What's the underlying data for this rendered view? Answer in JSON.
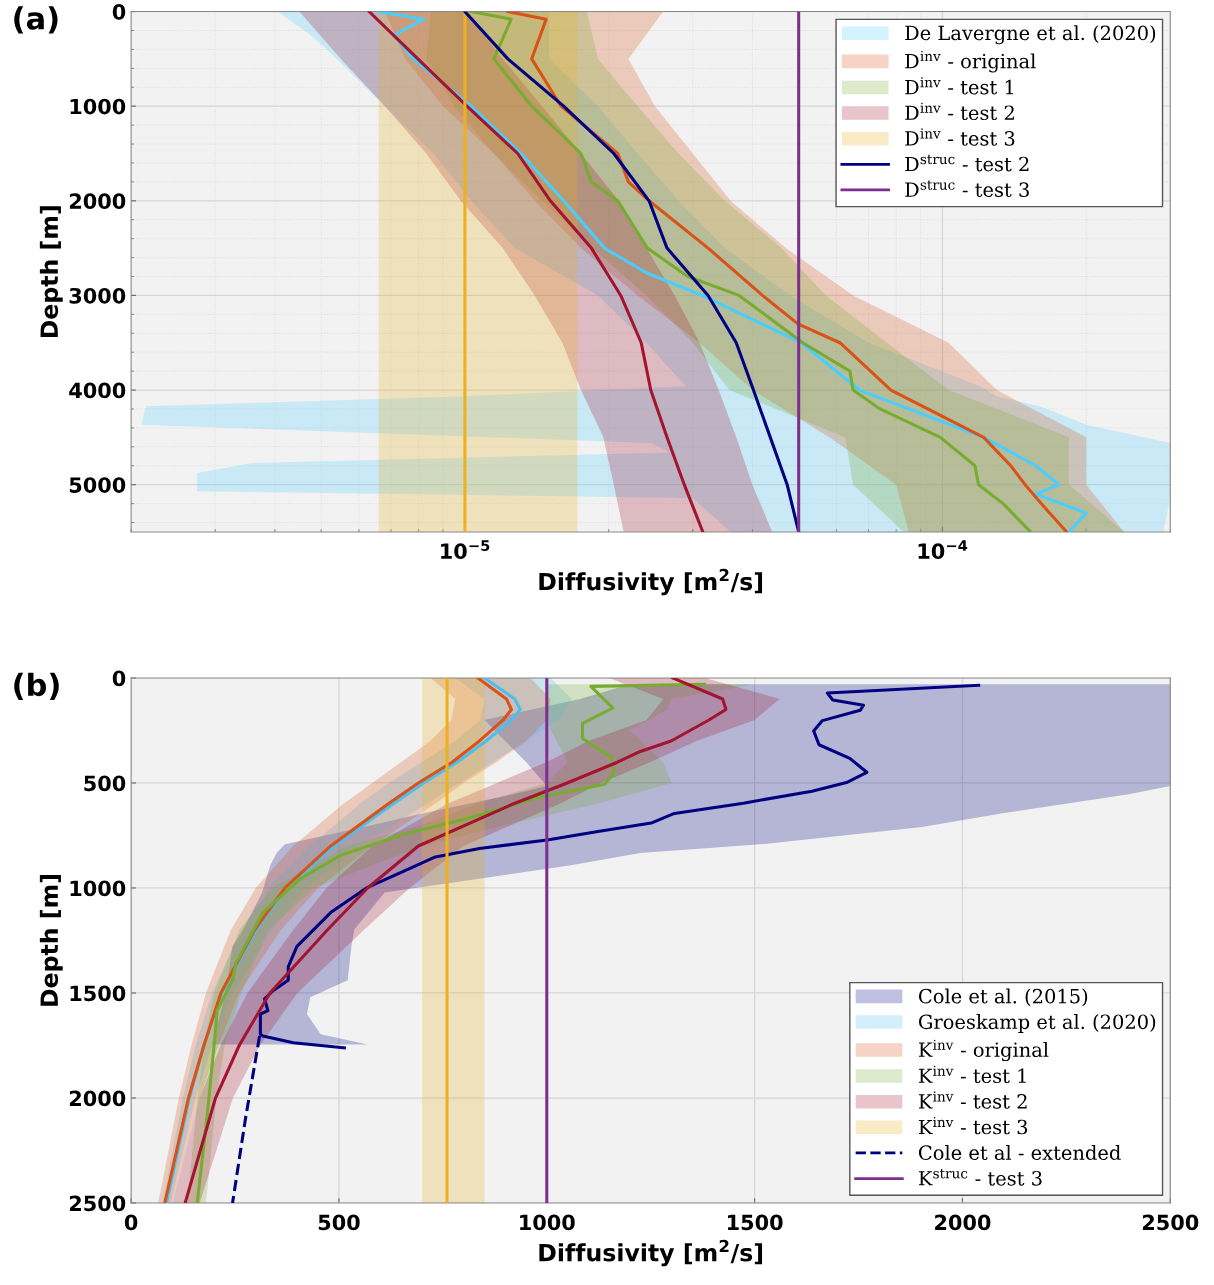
{
  "chart_data": [
    {
      "type": "line",
      "orientation": "horizontal",
      "title": "(a)",
      "xlabel": "Diffusivity [m$^{2}$/s]",
      "ylabel": "Depth [m]",
      "log": "x",
      "grid": true,
      "legend": "top right",
      "xlim": [
        2e-06,
        0.0003
      ],
      "xticks": [
        {
          "value": 1e-05,
          "label": "10$^{−5}$"
        },
        {
          "value": 0.0001,
          "label": "10$^{−4}$"
        }
      ],
      "ylim": [
        5500,
        0
      ],
      "yticks": [
        0,
        1000,
        2000,
        3000,
        4000,
        5000
      ],
      "series": [
        {
          "name": "De Lavergne et al. (2020)",
          "color": "#4aceff",
          "x": [
            0,
            80,
            250,
            500,
            1000,
            1500,
            2000,
            2500,
            2760,
            3000,
            3500,
            3960,
            4000,
            4066,
            4172,
            4366,
            4500,
            4559,
            4660,
            4771,
            4800,
            4876,
            5000,
            5070,
            5100,
            5140,
            5300,
            5500
          ],
          "values": [
            6.6e-06,
            8.2e-06,
            7.1e-06,
            7.8e-06,
            1.03e-05,
            1.31e-05,
            1.61e-05,
            1.96e-05,
            2.4e-05,
            3.14e-05,
            5.06e-05,
            null,
            6.7e-05,
            null,
            null,
            null,
            0.000122,
            null,
            null,
            null,
            0.000157,
            null,
            0.000175,
            null,
            0.000157,
            null,
            0.0002,
            0.000184
          ],
          "lower": [
            4.05e-06,
            null,
            4.76e-06,
            5.4e-06,
            6.8e-06,
            8.6e-06,
            1.03e-05,
            1.27e-05,
            null,
            1.9e-05,
            2.4e-05,
            2.9e-05,
            null,
            1e-05,
            2.15e-06,
            2.1e-06,
            null,
            2.45e-05,
            2.7e-05,
            3.6e-06,
            null,
            2.75e-06,
            null,
            2.75e-06,
            null,
            3e-05,
            null,
            3.6e-05
          ],
          "upper": [
            1.5e-05,
            null,
            1.5e-05,
            1.5e-05,
            1.9e-05,
            2.3e-05,
            2.8e-05,
            3.5e-05,
            null,
            4.8e-05,
            7e-05,
            0.00012,
            null,
            0.00013,
            0.00016,
            0.0002,
            null,
            0.0003,
            0.0003,
            0.0003,
            null,
            0.0003,
            null,
            0.0003,
            null,
            0.0003,
            null,
            0.00029
          ]
        },
        {
          "name": "D$^{inv}$ - original",
          "color": "#d95319",
          "x": [
            0,
            80,
            500,
            1000,
            1500,
            1800,
            2000,
            2500,
            3000,
            3300,
            3500,
            4000,
            4500,
            4800,
            5000,
            5200,
            5500
          ],
          "values": [
            1.23e-05,
            1.48e-05,
            1.38e-05,
            1.59e-05,
            2.09e-05,
            2.2e-05,
            2.43e-05,
            3.23e-05,
            4.2e-05,
            4.98e-05,
            6.1e-05,
            7.8e-05,
            0.000122,
            0.000139,
            0.000149,
            0.000161,
            0.000182
          ],
          "lower": [
            6.8e-06,
            null,
            7.5e-06,
            9e-06,
            1.15e-05,
            null,
            1.4e-05,
            1.75e-05,
            2.3e-05,
            null,
            3.1e-05,
            4e-05,
            5.8e-05,
            null,
            8e-05,
            null,
            8.5e-05
          ],
          "upper": [
            2.6e-05,
            null,
            2.2e-05,
            2.5e-05,
            3e-05,
            null,
            3.6e-05,
            4.7e-05,
            6.5e-05,
            null,
            0.000103,
            0.00013,
            0.0002,
            null,
            0.0002,
            null,
            0.00024
          ]
        },
        {
          "name": "D$^{inv}$ - test 1",
          "color": "#77ac30",
          "x": [
            0,
            80,
            500,
            1000,
            1500,
            1800,
            2000,
            2500,
            2800,
            3000,
            3500,
            3800,
            4000,
            4200,
            4500,
            4800,
            5000,
            5200,
            5500
          ],
          "values": [
            1.03e-05,
            1.25e-05,
            1.15e-05,
            1.38e-05,
            1.75e-05,
            1.84e-05,
            2.09e-05,
            2.41e-05,
            2.93e-05,
            3.75e-05,
            5.1e-05,
            6.4e-05,
            6.5e-05,
            7.4e-05,
            9.9e-05,
            0.000117,
            0.000119,
            0.000134,
            0.000153
          ],
          "lower": [
            8.5e-06,
            null,
            8.3e-06,
            9.5e-06,
            1.15e-05,
            null,
            1.45e-05,
            1.85e-05,
            null,
            2.4e-05,
            3e-05,
            null,
            3.58e-05,
            null,
            6.26e-05,
            null,
            6.5e-05,
            null,
            8.3e-05
          ],
          "upper": [
            1.8e-05,
            null,
            1.9e-05,
            2.3e-05,
            2.8e-05,
            null,
            3.5e-05,
            4.6e-05,
            null,
            5.7e-05,
            7.65e-05,
            null,
            0.000103,
            null,
            0.000184,
            null,
            0.000184,
            null,
            0.00024
          ]
        },
        {
          "name": "D$^{inv}$ - test 2",
          "color": "#a2142f",
          "x": [
            0,
            500,
            1000,
            1500,
            2000,
            2500,
            3000,
            3500,
            4000,
            4500,
            5000,
            5500
          ],
          "values": [
            6.3e-06,
            7.97e-06,
            1.01e-05,
            1.29e-05,
            1.51e-05,
            1.84e-05,
            2.12e-05,
            2.34e-05,
            2.45e-05,
            2.65e-05,
            2.88e-05,
            3.15e-05
          ],
          "lower": [
            4.5e-06,
            5.5e-06,
            6.8e-06,
            8.3e-06,
            9.8e-06,
            1.2e-05,
            1.4e-05,
            1.6e-05,
            1.75e-05,
            1.95e-05,
            2.05e-05,
            2.15e-05
          ],
          "upper": [
            1e-05,
            1.2e-05,
            1.45e-05,
            1.75e-05,
            2.1e-05,
            2.4e-05,
            2.75e-05,
            3.1e-05,
            3.4e-05,
            3.7e-05,
            4e-05,
            4.4e-05
          ]
        },
        {
          "name": "D$^{inv}$ - test 3",
          "color": "#edb120",
          "x": [
            0,
            5500
          ],
          "values": [
            1e-05,
            1e-05
          ],
          "lower": [
            6.6e-06,
            6.6e-06
          ],
          "upper": [
            1.72e-05,
            1.72e-05
          ]
        },
        {
          "name": "D$^{struc}$ - test 2",
          "color": "#000080",
          "x": [
            0,
            500,
            1000,
            1500,
            2000,
            2500,
            3000,
            3500,
            4000,
            4500,
            5000,
            5500
          ],
          "values": [
            1e-05,
            1.23e-05,
            1.61e-05,
            2.05e-05,
            2.43e-05,
            2.65e-05,
            3.23e-05,
            3.7e-05,
            4.02e-05,
            4.36e-05,
            4.73e-05,
            5e-05
          ]
        },
        {
          "name": "D$^{struc}$ - test 3",
          "color": "#7e2f8e",
          "x": [
            0,
            5500
          ],
          "values": [
            5e-05,
            5e-05
          ]
        }
      ]
    },
    {
      "type": "line",
      "orientation": "horizontal",
      "title": "(b)",
      "xlabel": "Diffusivity [m$^{2}$/s]",
      "ylabel": "Depth [m]",
      "grid": true,
      "legend": "bottom right",
      "xlim": [
        0,
        2500
      ],
      "xticks": [
        0,
        500,
        1000,
        1500,
        2000,
        2500
      ],
      "ylim": [
        2500,
        0
      ],
      "yticks": [
        0,
        500,
        1000,
        1500,
        2000,
        2500
      ],
      "series": [
        {
          "name": "Cole et al. (2015)",
          "color": "#000080",
          "x": [
            30,
            35,
            72,
            100,
            105,
            130,
            154,
            200,
            203,
            252,
            300,
            318,
            383,
            400,
            449,
            498,
            514,
            539,
            554,
            596,
            645,
            691,
            710,
            731,
            771,
            792,
            812,
            833,
            852,
            892,
            924,
            997,
            1021,
            1117,
            1198,
            1278,
            1375,
            1439,
            1488,
            1520,
            1528,
            1584,
            1600,
            1697,
            1705,
            1737,
            1745,
            1761
          ],
          "values": [
            null,
            2039,
            1675,
            null,
            1688,
            1762,
            1754,
            null,
            1663,
            1642,
            null,
            1655,
            1729,
            null,
            1770,
            1721,
            null,
            1638,
            null,
            1473,
            1307,
            1251,
            null,
            1123,
            1001,
            null,
            838,
            null,
            732,
            null,
            651,
            569,
            null,
            480,
            null,
            399,
            378,
            378,
            342,
            null,
            321,
            329,
            311,
            311,
            317,
            390,
            null,
            513
          ],
          "lower": [
            1200,
            null,
            null,
            1080,
            null,
            null,
            null,
            850,
            null,
            null,
            900,
            null,
            null,
            950,
            null,
            null,
            1000,
            null,
            919,
            null,
            700,
            null,
            560,
            null,
            null,
            370,
            null,
            350,
            null,
            335,
            null,
            null,
            315,
            null,
            270,
            244,
            null,
            232,
            null,
            224,
            null,
            null,
            215,
            200,
            null,
            null,
            195,
            null
          ],
          "upper": [
            2500,
            null,
            null,
            2500,
            null,
            null,
            null,
            2500,
            null,
            null,
            2500,
            null,
            null,
            2500,
            null,
            null,
            2500,
            null,
            2400,
            null,
            2093,
            null,
            1903,
            null,
            null,
            1514,
            null,
            1225,
            null,
            1058,
            null,
            null,
            610,
            null,
            537,
            530,
            null,
            521,
            null,
            431,
            null,
            null,
            423,
            456,
            null,
            null,
            569,
            null
          ]
        },
        {
          "name": "Groeskamp et al. (2020)",
          "color": "#4dbeee",
          "x": [
            0,
            100,
            150,
            200,
            300,
            400,
            500,
            600,
            800,
            1000,
            1200,
            1500,
            1750,
            2000,
            2500
          ],
          "values": [
            850,
            923,
            936,
            915,
            854,
            785,
            704,
            630,
            488,
            374,
            301,
            218,
            175,
            140,
            85
          ],
          "lower": [
            780,
            850,
            null,
            840,
            780,
            700,
            620,
            550,
            430,
            330,
            265,
            195,
            155,
            125,
            75
          ],
          "upper": [
            1010,
            1060,
            null,
            1030,
            950,
            870,
            790,
            710,
            550,
            420,
            340,
            245,
            195,
            155,
            95
          ]
        },
        {
          "name": "K$^{inv}$ - original",
          "color": "#d95319",
          "x": [
            0,
            100,
            150,
            200,
            300,
            400,
            500,
            600,
            800,
            1000,
            1200,
            1500,
            1750,
            2000,
            2500
          ],
          "values": [
            834,
            903,
            915,
            895,
            838,
            773,
            691,
            618,
            480,
            370,
            297,
            216,
            175,
            138,
            81
          ],
          "lower": [
            720,
            780,
            null,
            770,
            720,
            650,
            580,
            510,
            390,
            300,
            240,
            180,
            145,
            115,
            65
          ],
          "upper": [
            960,
            1010,
            null,
            1000,
            950,
            880,
            800,
            730,
            580,
            450,
            360,
            260,
            210,
            165,
            100
          ]
        },
        {
          "name": "K$^{inv}$ - test 1",
          "color": "#77ac30",
          "x": [
            30,
            40,
            100,
            143,
            150,
            216,
            250,
            288,
            377,
            400,
            449,
            500,
            506,
            570,
            600,
            667,
            700,
            747,
            800,
            844,
            956,
            1000,
            1117,
            1200,
            1359,
            1439,
            1500,
            1584,
            1750,
            1761,
            2000,
            2083,
            2500
          ],
          "values": [
            1380,
            1106,
            null,
            1159,
            null,
            1086,
            null,
            1086,
            1155,
            null,
            1163,
            null,
            1139,
            976,
            null,
            814,
            null,
            651,
            null,
            504,
            407,
            null,
            317,
            null,
            252,
            244,
            null,
            207,
            null,
            199,
            null,
            183,
            159
          ],
          "lower": [
            1000,
            null,
            1000,
            null,
            1000,
            null,
            1010,
            null,
            null,
            1050,
            null,
            1000,
            null,
            null,
            830,
            null,
            700,
            null,
            520,
            null,
            null,
            340,
            null,
            260,
            null,
            null,
            200,
            null,
            175,
            null,
            160,
            null,
            135
          ],
          "upper": [
            1500,
            null,
            1300,
            null,
            1290,
            null,
            1200,
            null,
            null,
            1280,
            null,
            1300,
            null,
            null,
            1120,
            null,
            900,
            null,
            700,
            null,
            null,
            440,
            null,
            330,
            null,
            null,
            265,
            null,
            225,
            null,
            205,
            null,
            180
          ]
        },
        {
          "name": "K$^{inv}$ - test 2",
          "color": "#a2142f",
          "x": [
            0,
            100,
            150,
            200,
            300,
            350,
            400,
            500,
            600,
            800,
            1000,
            1200,
            1500,
            1750,
            2000,
            2500
          ],
          "values": [
            1303,
            1423,
            1431,
            1390,
            1299,
            1225,
            1171,
            1049,
            919,
            691,
            569,
            472,
            334,
            260,
            203,
            130
          ],
          "lower": [
            1150,
            1280,
            null,
            1240,
            1100,
            null,
            1000,
            880,
            760,
            580,
            470,
            390,
            280,
            215,
            165,
            100
          ],
          "upper": [
            1380,
            1560,
            null,
            1500,
            1360,
            null,
            1250,
            1130,
            1030,
            800,
            670,
            560,
            400,
            310,
            245,
            165
          ]
        },
        {
          "name": "K$^{inv}$ - test 3",
          "color": "#edb120",
          "x": [
            0,
            2500
          ],
          "values": [
            760,
            760
          ],
          "lower": [
            700,
            700
          ],
          "upper": [
            850,
            850
          ]
        },
        {
          "name": "Cole et al - extended",
          "color": "#000080",
          "line_style": "dashed",
          "x": [
            1705,
            2100,
            2500
          ],
          "values": [
            309,
            275,
            244
          ]
        },
        {
          "name": "K$^{struc}$ - test 3",
          "color": "#7e2f8e",
          "x": [
            0,
            2500
          ],
          "values": [
            1000,
            1000
          ]
        }
      ]
    }
  ]
}
